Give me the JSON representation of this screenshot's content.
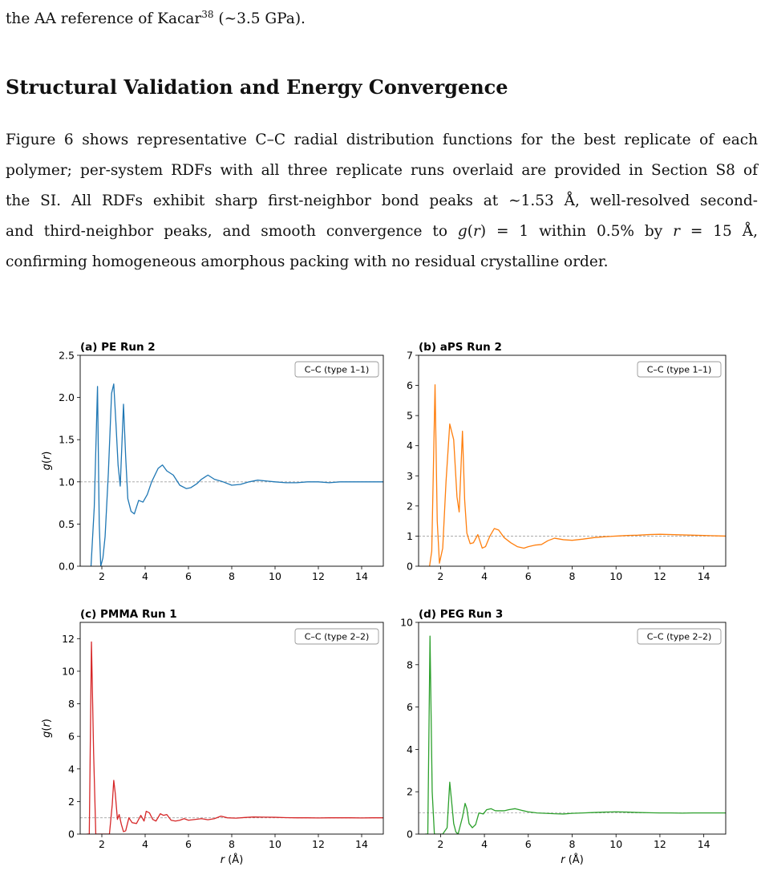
{
  "paper": {
    "line0_pre": "the AA reference of Kacar",
    "line0_sup": "38",
    "line0_post": " (∼3.5 GPa).",
    "heading": "Structural Validation and Energy Convergence",
    "p1": "Figure 6 shows representative C–C radial distribution functions for the best replicate of each",
    "p2": "polymer; per-system RDFs with all three replicate runs overlaid are provided in Section S8 of",
    "p3": "the SI. All RDFs exhibit sharp first-neighbor bond peaks at ∼1.53 Å, well-resolved second-",
    "p4_pre": "and third-neighbor peaks, and smooth convergence to ",
    "p4_g": "g",
    "p4_mid": "(",
    "p4_r": "r",
    "p4_post": ") = 1 within 0.5% by ",
    "p4_r2": "r",
    "p4_end": " = 15 Å,",
    "p5": "confirming homogeneous amorphous packing with no residual crystalline order."
  },
  "chart_data": [
    {
      "type": "line",
      "title": "(a) PE Run 2",
      "legend": "C–C (type 1–1)",
      "legend_position": "top-right",
      "xlabel": "",
      "ylabel": "g(r)",
      "xlim": [
        1.0,
        15.0
      ],
      "ylim": [
        0,
        2.5
      ],
      "xticks": [
        2,
        4,
        6,
        8,
        10,
        12,
        14
      ],
      "yticks": [
        0.0,
        0.5,
        1.0,
        1.5,
        2.0,
        2.5
      ],
      "ytick_labels": [
        "0.0",
        "0.5",
        "1.0",
        "1.5",
        "2.0",
        "2.5"
      ],
      "reference_y": 1.0,
      "color": "#1f77b4",
      "x": [
        1.5,
        1.65,
        1.8,
        1.88,
        1.95,
        2.05,
        2.15,
        2.3,
        2.45,
        2.55,
        2.65,
        2.75,
        2.85,
        3.0,
        3.1,
        3.2,
        3.35,
        3.5,
        3.7,
        3.9,
        4.1,
        4.3,
        4.6,
        4.8,
        5.0,
        5.3,
        5.6,
        5.9,
        6.1,
        6.4,
        6.6,
        6.9,
        7.2,
        7.6,
        8.0,
        8.4,
        8.8,
        9.2,
        9.6,
        10.0,
        10.5,
        11.0,
        11.5,
        12.0,
        12.5,
        13.0,
        13.5,
        14.0,
        14.5,
        15.0
      ],
      "y": [
        0.0,
        0.7,
        2.13,
        0.5,
        0.0,
        0.1,
        0.35,
        1.1,
        2.05,
        2.16,
        1.7,
        1.2,
        0.95,
        1.92,
        1.3,
        0.8,
        0.65,
        0.62,
        0.78,
        0.76,
        0.85,
        1.0,
        1.16,
        1.2,
        1.13,
        1.08,
        0.96,
        0.92,
        0.93,
        0.98,
        1.03,
        1.08,
        1.03,
        1.0,
        0.96,
        0.97,
        1.0,
        1.02,
        1.01,
        1.0,
        0.99,
        0.99,
        1.0,
        1.0,
        0.99,
        1.0,
        1.0,
        1.0,
        1.0,
        1.0
      ]
    },
    {
      "type": "line",
      "title": "(b) aPS Run 2",
      "legend": "C–C (type 1–1)",
      "legend_position": "top-right",
      "xlabel": "",
      "ylabel": "",
      "xlim": [
        1.0,
        15.0
      ],
      "ylim": [
        0,
        7
      ],
      "xticks": [
        2,
        4,
        6,
        8,
        10,
        12,
        14
      ],
      "yticks": [
        0,
        1,
        2,
        3,
        4,
        5,
        6,
        7
      ],
      "ytick_labels": [
        "0",
        "1",
        "2",
        "3",
        "4",
        "5",
        "6",
        "7"
      ],
      "reference_y": 1.0,
      "color": "#ff7f0e",
      "x": [
        1.5,
        1.6,
        1.75,
        1.85,
        1.95,
        2.1,
        2.25,
        2.42,
        2.6,
        2.75,
        2.85,
        3.0,
        3.1,
        3.2,
        3.35,
        3.5,
        3.7,
        3.9,
        4.05,
        4.25,
        4.45,
        4.65,
        4.9,
        5.2,
        5.5,
        5.8,
        6.0,
        6.3,
        6.6,
        6.9,
        7.2,
        7.6,
        8.0,
        8.5,
        9.0,
        9.5,
        10.0,
        10.5,
        11.0,
        11.5,
        12.0,
        12.5,
        13.0,
        13.5,
        14.0,
        14.5,
        15.0
      ],
      "y": [
        0.0,
        0.5,
        6.02,
        1.5,
        0.1,
        0.6,
        2.8,
        4.72,
        4.2,
        2.3,
        1.8,
        4.48,
        2.2,
        1.1,
        0.75,
        0.78,
        1.05,
        0.6,
        0.65,
        1.0,
        1.25,
        1.2,
        0.95,
        0.78,
        0.65,
        0.6,
        0.65,
        0.7,
        0.72,
        0.85,
        0.93,
        0.88,
        0.86,
        0.9,
        0.95,
        0.98,
        1.0,
        1.02,
        1.03,
        1.05,
        1.06,
        1.05,
        1.04,
        1.03,
        1.02,
        1.01,
        1.0
      ]
    },
    {
      "type": "line",
      "title": "(c) PMMA Run 1",
      "legend": "C–C (type 2–2)",
      "legend_position": "top-right",
      "xlabel": "r (Å)",
      "ylabel": "g(r)",
      "xlim": [
        1.0,
        15.0
      ],
      "ylim": [
        0,
        13
      ],
      "xticks": [
        2,
        4,
        6,
        8,
        10,
        12,
        14
      ],
      "yticks": [
        0,
        2,
        4,
        6,
        8,
        10,
        12
      ],
      "ytick_labels": [
        "0",
        "2",
        "4",
        "6",
        "8",
        "10",
        "12"
      ],
      "reference_y": 1.0,
      "color": "#d62728",
      "x": [
        1.3,
        1.42,
        1.52,
        1.62,
        1.72,
        1.85,
        2.1,
        2.35,
        2.48,
        2.55,
        2.62,
        2.72,
        2.8,
        2.9,
        3.0,
        3.1,
        3.25,
        3.4,
        3.6,
        3.8,
        3.95,
        4.05,
        4.2,
        4.35,
        4.5,
        4.7,
        4.85,
        5.0,
        5.2,
        5.4,
        5.6,
        5.8,
        6.0,
        6.3,
        6.6,
        6.9,
        7.2,
        7.5,
        7.8,
        8.2,
        8.6,
        9.0,
        9.5,
        10.0,
        10.5,
        11.0,
        11.5,
        12.0,
        12.5,
        13.0,
        13.5,
        14.0,
        14.5,
        15.0
      ],
      "y": [
        0.0,
        0.0,
        11.8,
        5.0,
        0.0,
        0.0,
        0.0,
        0.0,
        1.8,
        3.3,
        2.5,
        0.9,
        1.2,
        0.6,
        0.15,
        0.2,
        1.0,
        0.7,
        0.65,
        1.15,
        0.8,
        1.4,
        1.3,
        0.9,
        0.8,
        1.25,
        1.15,
        1.2,
        0.85,
        0.8,
        0.85,
        0.95,
        0.85,
        0.9,
        0.95,
        0.88,
        0.95,
        1.1,
        1.0,
        0.98,
        1.02,
        1.05,
        1.04,
        1.03,
        1.01,
        1.0,
        1.0,
        0.99,
        1.0,
        1.0,
        1.0,
        0.99,
        1.0,
        1.0
      ]
    },
    {
      "type": "line",
      "title": "(d) PEG Run 3",
      "legend": "C–C (type 2–2)",
      "legend_position": "top-right",
      "xlabel": "r (Å)",
      "ylabel": "",
      "xlim": [
        1.0,
        15.0
      ],
      "ylim": [
        0,
        10
      ],
      "xticks": [
        2,
        4,
        6,
        8,
        10,
        12,
        14
      ],
      "yticks": [
        0,
        2,
        4,
        6,
        8,
        10
      ],
      "ytick_labels": [
        "0",
        "2",
        "4",
        "6",
        "8",
        "10"
      ],
      "reference_y": 1.0,
      "color": "#2ca02c",
      "x": [
        1.3,
        1.42,
        1.52,
        1.62,
        1.72,
        1.85,
        2.1,
        2.3,
        2.42,
        2.5,
        2.6,
        2.7,
        2.8,
        3.0,
        3.12,
        3.2,
        3.3,
        3.45,
        3.6,
        3.75,
        3.95,
        4.1,
        4.3,
        4.5,
        4.7,
        4.9,
        5.1,
        5.4,
        5.7,
        6.0,
        6.4,
        6.8,
        7.2,
        7.6,
        8.0,
        8.5,
        9.0,
        9.5,
        10.0,
        10.5,
        11.0,
        11.5,
        12.0,
        12.5,
        13.0,
        13.5,
        14.0,
        14.5,
        15.0
      ],
      "y": [
        0.0,
        0.0,
        9.35,
        2.0,
        0.0,
        0.0,
        0.0,
        0.3,
        2.45,
        1.6,
        0.5,
        0.1,
        0.0,
        0.8,
        1.45,
        1.2,
        0.5,
        0.3,
        0.45,
        1.0,
        0.95,
        1.15,
        1.2,
        1.1,
        1.1,
        1.1,
        1.15,
        1.2,
        1.12,
        1.05,
        1.0,
        0.98,
        0.96,
        0.95,
        0.98,
        1.0,
        1.02,
        1.04,
        1.05,
        1.04,
        1.02,
        1.01,
        1.0,
        1.0,
        0.99,
        1.0,
        1.0,
        1.0,
        1.0
      ]
    }
  ]
}
